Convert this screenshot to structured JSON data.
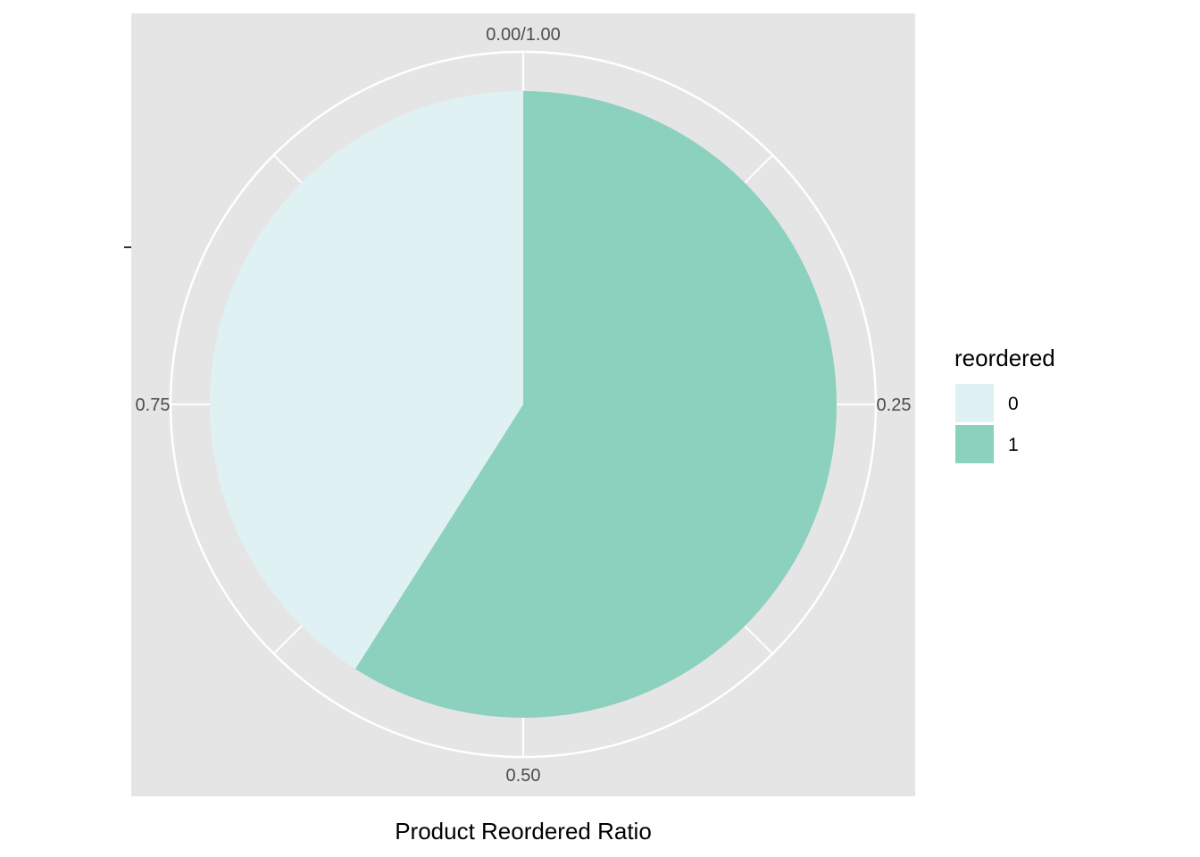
{
  "chart_data": {
    "type": "pie",
    "xlabel": "Product Reordered Ratio",
    "ylabel": "",
    "categories": [
      "0",
      "1"
    ],
    "values": [
      0.41,
      0.59
    ],
    "theta_ticks": [
      "0.00/1.00",
      "0.25",
      "0.50",
      "0.75"
    ],
    "legend": {
      "title": "reordered",
      "placement": "right",
      "entries": [
        "0",
        "1"
      ]
    },
    "colors": {
      "0": "#e0f1f4",
      "1": "#8cd1bd",
      "panel": "#e5e5e5",
      "grid": "#ffffff"
    },
    "grid": true
  }
}
